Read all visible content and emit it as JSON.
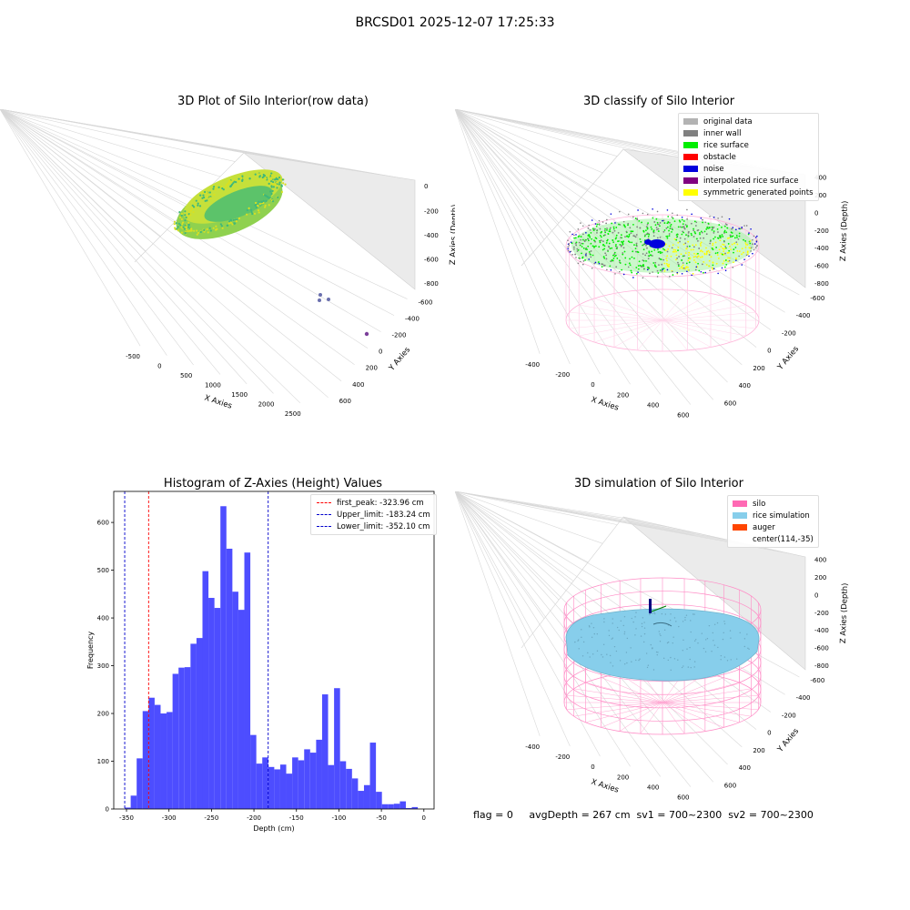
{
  "suptitle": "BRCSD01 2025-12-07 17:25:33",
  "colors": {
    "histogram": "#4d4dff",
    "first_peak": "#ff0000",
    "limits": "#0000cc",
    "original": "#b3b3b3",
    "inner_wall": "#808080",
    "rice_surface": "#00ee00",
    "obstacle": "#ff0000",
    "noise": "#0000dd",
    "interpolated": "#800080",
    "symmetric": "#ffff00",
    "silo": "#ff69b4",
    "rice_sim": "#87ceeb",
    "auger": "#ff4500"
  },
  "plot1": {
    "title": "3D Plot of Silo Interior(row data)",
    "xlabel": "X Axies",
    "ylabel": "Y Axies",
    "zlabel": "Z Axies (Depth)",
    "x_ticks": [
      "-500",
      "0",
      "500",
      "1000",
      "1500",
      "2000",
      "2500"
    ],
    "y_ticks": [
      "600",
      "400",
      "200",
      "0",
      "-200",
      "-400",
      "-600"
    ],
    "z_ticks": [
      "0",
      "-200",
      "-400",
      "-600",
      "-800"
    ]
  },
  "plot2": {
    "title": "3D classify of Silo Interior",
    "xlabel": "X Axies",
    "ylabel": "Y Axies",
    "zlabel": "Z Axies (Depth)",
    "x_ticks": [
      "-400",
      "-200",
      "0",
      "200",
      "400",
      "600"
    ],
    "y_ticks": [
      "600",
      "400",
      "200",
      "0",
      "-200",
      "-400",
      "-600"
    ],
    "z_ticks": [
      "400",
      "200",
      "0",
      "-200",
      "-400",
      "-600",
      "-800"
    ],
    "legend": [
      {
        "label": "original data",
        "color": "#b3b3b3"
      },
      {
        "label": "inner wall",
        "color": "#808080"
      },
      {
        "label": "rice surface",
        "color": "#00ee00"
      },
      {
        "label": "obstacle",
        "color": "#ff0000"
      },
      {
        "label": "noise",
        "color": "#0000dd"
      },
      {
        "label": "interpolated rice surface",
        "color": "#800080"
      },
      {
        "label": "symmetric generated points",
        "color": "#ffff00"
      }
    ]
  },
  "plot4": {
    "title": "3D simulation of Silo Interior",
    "xlabel": "X Axies",
    "ylabel": "Y Axies",
    "zlabel": "Z Axies (Depth)",
    "x_ticks": [
      "-400",
      "-200",
      "0",
      "200",
      "400",
      "600"
    ],
    "y_ticks": [
      "600",
      "400",
      "200",
      "0",
      "-200",
      "-400",
      "-600"
    ],
    "z_ticks": [
      "400",
      "200",
      "0",
      "-200",
      "-400",
      "-600",
      "-800"
    ],
    "legend": [
      {
        "label": "silo",
        "color": "#ff69b4"
      },
      {
        "label": "rice simulation",
        "color": "#87ceeb"
      },
      {
        "label": "auger",
        "color": "#ff4500"
      },
      {
        "label": "center(114,-35)",
        "color": ""
      }
    ]
  },
  "footer": {
    "text": "flag = 0     avgDepth = 267 cm  sv1 = 700~2300  sv2 = 700~2300"
  },
  "chart_data": {
    "type": "bar",
    "title": "Histogram of Z-Axies (Height) Values",
    "xlabel": "Depth (cm)",
    "ylabel": "Frequency",
    "xlim": [
      -365,
      12
    ],
    "ylim": [
      0,
      665
    ],
    "x_ticks": [
      -350,
      -300,
      -250,
      -200,
      -150,
      -100,
      -50,
      0
    ],
    "y_ticks": [
      0,
      100,
      200,
      300,
      400,
      500,
      600
    ],
    "bin_start": -352.1,
    "bin_width": 7.04,
    "values": [
      3,
      28,
      106,
      205,
      233,
      218,
      200,
      203,
      283,
      296,
      297,
      346,
      358,
      498,
      442,
      421,
      634,
      545,
      455,
      417,
      537,
      155,
      95,
      108,
      88,
      83,
      93,
      74,
      108,
      102,
      125,
      118,
      145,
      240,
      92,
      253,
      100,
      84,
      64,
      38,
      50,
      139,
      36,
      10,
      10,
      11,
      16,
      2,
      4
    ],
    "vlines": [
      {
        "label": "first_peak: -323.96 cm",
        "x": -323.96,
        "color": "#ff0000"
      },
      {
        "label": "Upper_limit: -183.24 cm",
        "x": -183.24,
        "color": "#0000cc"
      },
      {
        "label": "Lower_limit: -352.10 cm",
        "x": -352.1,
        "color": "#0000cc"
      }
    ]
  }
}
